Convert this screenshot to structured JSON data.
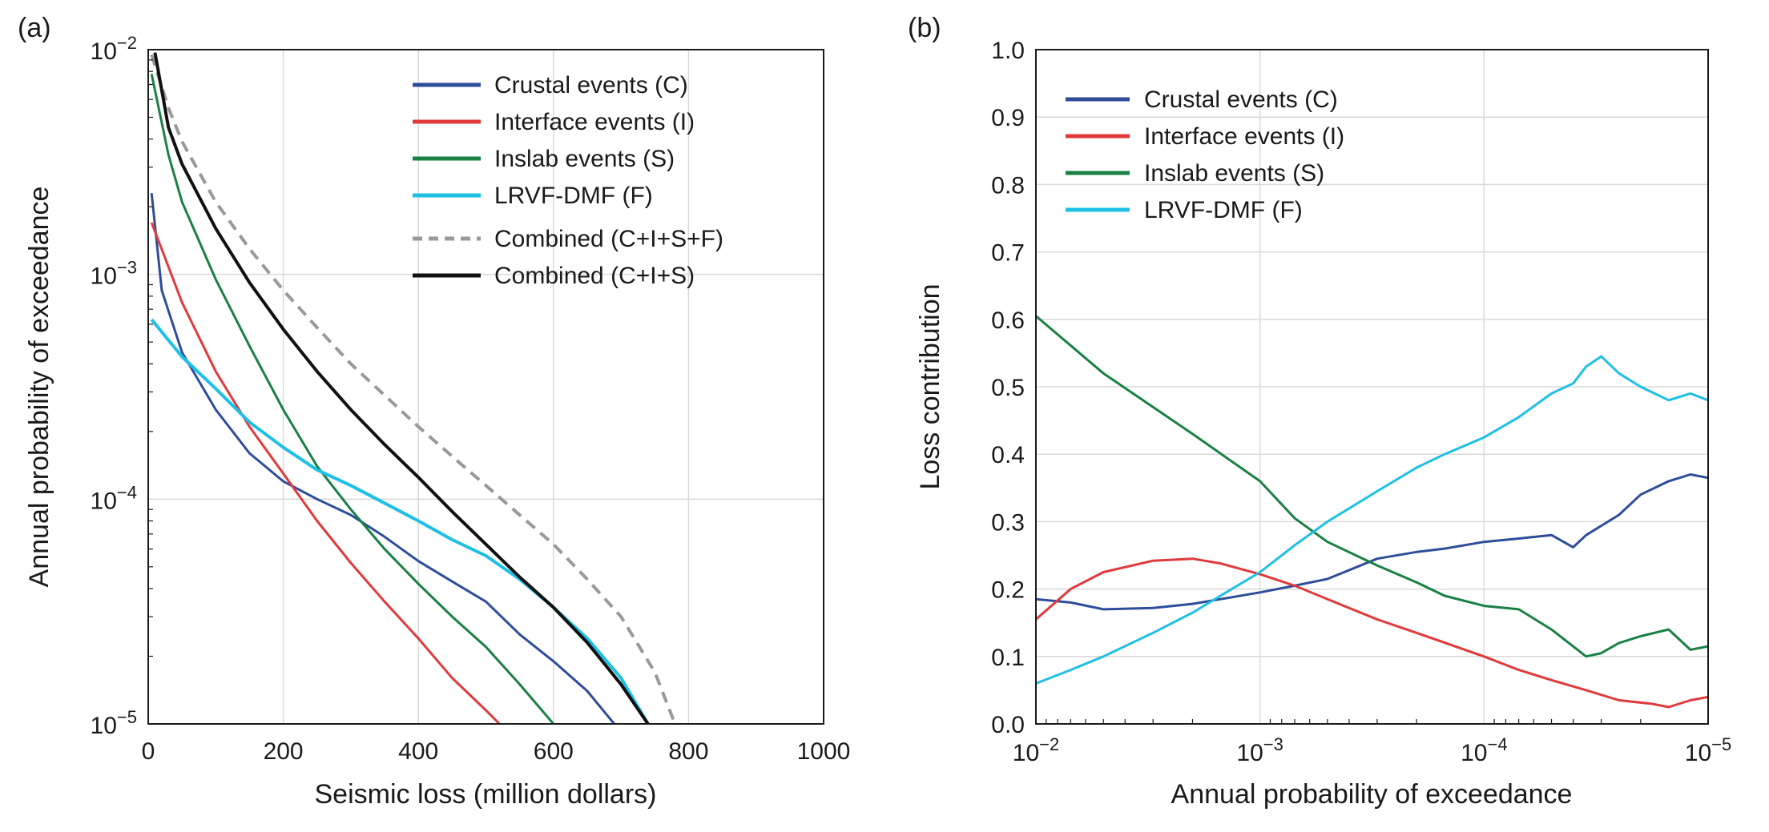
{
  "chart_data": [
    {
      "panel_label": "(a)",
      "type": "line",
      "xlabel": "Seismic loss (million dollars)",
      "ylabel": "Annual probability of exceedance",
      "xlim": [
        0,
        1000
      ],
      "ylim": [
        1e-05,
        0.01
      ],
      "yscale": "log",
      "x_ticks": [
        "0",
        "200",
        "400",
        "600",
        "800",
        "1000"
      ],
      "y_ticks": [
        {
          "base": "10",
          "exp": "−5"
        },
        {
          "base": "10",
          "exp": "−4"
        },
        {
          "base": "10",
          "exp": "−3"
        },
        {
          "base": "10",
          "exp": "−2"
        }
      ],
      "grid": true,
      "legend_position": "top-right",
      "series": [
        {
          "name": "Crustal events (C)",
          "color": "#2e4d9a",
          "dash": "solid",
          "x": [
            5,
            20,
            50,
            100,
            150,
            200,
            250,
            300,
            350,
            400,
            450,
            500,
            550,
            600,
            650,
            690
          ],
          "y": [
            0.0023,
            0.00085,
            0.00045,
            0.00025,
            0.00016,
            0.00012,
            0.0001,
            8.5e-05,
            6.8e-05,
            5.3e-05,
            4.3e-05,
            3.5e-05,
            2.5e-05,
            1.9e-05,
            1.4e-05,
            1e-05
          ]
        },
        {
          "name": "Interface events (I)",
          "color": "#e03a3c",
          "dash": "solid",
          "x": [
            5,
            50,
            100,
            150,
            200,
            250,
            300,
            350,
            400,
            450,
            500,
            520
          ],
          "y": [
            0.0017,
            0.00075,
            0.00037,
            0.00021,
            0.00013,
            8e-05,
            5.2e-05,
            3.5e-05,
            2.4e-05,
            1.6e-05,
            1.15e-05,
            1e-05
          ]
        },
        {
          "name": "Inslab events (S)",
          "color": "#1a8044",
          "dash": "solid",
          "x": [
            5,
            30,
            50,
            100,
            150,
            200,
            250,
            300,
            350,
            400,
            450,
            500,
            550,
            600
          ],
          "y": [
            0.0078,
            0.0034,
            0.0021,
            0.00095,
            0.00048,
            0.00025,
            0.00014,
            9e-05,
            6e-05,
            4.2e-05,
            3e-05,
            2.2e-05,
            1.5e-05,
            1e-05
          ]
        },
        {
          "name": "LRVF-DMF (F)",
          "color": "#1ec0e6",
          "dash": "solid",
          "x": [
            5,
            50,
            100,
            150,
            200,
            250,
            300,
            350,
            400,
            450,
            500,
            550,
            600,
            650,
            700,
            740
          ],
          "y": [
            0.00063,
            0.00043,
            0.00031,
            0.00022,
            0.00017,
            0.000135,
            0.000115,
            9.6e-05,
            8e-05,
            6.6e-05,
            5.6e-05,
            4.4e-05,
            3.3e-05,
            2.4e-05,
            1.6e-05,
            1e-05
          ]
        },
        {
          "name": "Combined (C+I+S+F)",
          "color": "#999999",
          "dash": "dashed",
          "x": [
            5,
            30,
            50,
            100,
            150,
            200,
            250,
            300,
            350,
            400,
            450,
            500,
            550,
            600,
            650,
            700,
            750,
            780
          ],
          "y": [
            0.0095,
            0.0055,
            0.0039,
            0.0021,
            0.0013,
            0.00085,
            0.00058,
            0.0004,
            0.00029,
            0.00021,
            0.000155,
            0.000115,
            8.5e-05,
            6.3e-05,
            4.4e-05,
            3e-05,
            1.7e-05,
            1e-05
          ]
        },
        {
          "name": "Combined (C+I+S)",
          "color": "#111111",
          "dash": "solid",
          "x": [
            10,
            30,
            50,
            100,
            150,
            200,
            250,
            300,
            350,
            400,
            450,
            500,
            550,
            600,
            650,
            700,
            740
          ],
          "y": [
            0.0097,
            0.0045,
            0.0031,
            0.0016,
            0.00092,
            0.00057,
            0.00037,
            0.00025,
            0.000175,
            0.000125,
            8.8e-05,
            6.3e-05,
            4.5e-05,
            3.3e-05,
            2.3e-05,
            1.5e-05,
            1e-05
          ]
        }
      ]
    },
    {
      "panel_label": "(b)",
      "type": "line",
      "xlabel": "Annual probability of exceedance",
      "ylabel": "Loss contribution",
      "xlim": [
        0.01,
        1e-05
      ],
      "ylim": [
        0.0,
        1.0
      ],
      "xscale": "log-reversed",
      "x_ticks": [
        {
          "base": "10",
          "exp": "−2"
        },
        {
          "base": "10",
          "exp": "−3"
        },
        {
          "base": "10",
          "exp": "−4"
        },
        {
          "base": "10",
          "exp": "−5"
        }
      ],
      "y_ticks": [
        "0.0",
        "0.1",
        "0.2",
        "0.3",
        "0.4",
        "0.5",
        "0.6",
        "0.7",
        "0.8",
        "0.9",
        "1.0"
      ],
      "grid": true,
      "legend_position": "top-left",
      "series": [
        {
          "name": "Crustal events (C)",
          "color": "#2e4d9a",
          "x": [
            0.01,
            0.007,
            0.005,
            0.003,
            0.002,
            0.0015,
            0.001,
            0.0007,
            0.0005,
            0.0003,
            0.0002,
            0.00015,
            0.0001,
            7e-05,
            5e-05,
            4e-05,
            3.5e-05,
            2.5e-05,
            2e-05,
            1.5e-05,
            1.2e-05,
            1e-05
          ],
          "y": [
            0.185,
            0.18,
            0.17,
            0.172,
            0.178,
            0.185,
            0.195,
            0.205,
            0.215,
            0.245,
            0.255,
            0.26,
            0.27,
            0.275,
            0.28,
            0.262,
            0.28,
            0.31,
            0.34,
            0.36,
            0.37,
            0.365
          ]
        },
        {
          "name": "Interface events (I)",
          "color": "#e03a3c",
          "x": [
            0.01,
            0.007,
            0.005,
            0.003,
            0.002,
            0.0015,
            0.001,
            0.0007,
            0.0005,
            0.0003,
            0.0002,
            0.0001,
            7e-05,
            5e-05,
            3.5e-05,
            2.5e-05,
            1.8e-05,
            1.5e-05,
            1.2e-05,
            1e-05
          ],
          "y": [
            0.155,
            0.2,
            0.225,
            0.242,
            0.245,
            0.238,
            0.222,
            0.205,
            0.185,
            0.155,
            0.135,
            0.1,
            0.08,
            0.065,
            0.05,
            0.035,
            0.03,
            0.025,
            0.035,
            0.04
          ]
        },
        {
          "name": "Inslab events (S)",
          "color": "#1a8044",
          "x": [
            0.01,
            0.005,
            0.002,
            0.001,
            0.0007,
            0.0005,
            0.0003,
            0.0002,
            0.00015,
            0.0001,
            7e-05,
            5e-05,
            3.5e-05,
            3e-05,
            2.5e-05,
            2e-05,
            1.5e-05,
            1.2e-05,
            1e-05
          ],
          "y": [
            0.605,
            0.52,
            0.43,
            0.36,
            0.305,
            0.27,
            0.235,
            0.21,
            0.19,
            0.175,
            0.17,
            0.14,
            0.1,
            0.105,
            0.12,
            0.13,
            0.14,
            0.11,
            0.115
          ]
        },
        {
          "name": "LRVF-DMF (F)",
          "color": "#1ec0e6",
          "x": [
            0.01,
            0.007,
            0.005,
            0.003,
            0.002,
            0.0015,
            0.001,
            0.0007,
            0.0005,
            0.0003,
            0.0002,
            0.00015,
            0.0001,
            7e-05,
            5e-05,
            4e-05,
            3.5e-05,
            3e-05,
            2.5e-05,
            2e-05,
            1.5e-05,
            1.2e-05,
            1e-05
          ],
          "y": [
            0.06,
            0.08,
            0.1,
            0.135,
            0.165,
            0.19,
            0.225,
            0.265,
            0.3,
            0.345,
            0.38,
            0.4,
            0.425,
            0.455,
            0.49,
            0.505,
            0.53,
            0.545,
            0.52,
            0.5,
            0.48,
            0.49,
            0.48
          ]
        }
      ]
    }
  ]
}
